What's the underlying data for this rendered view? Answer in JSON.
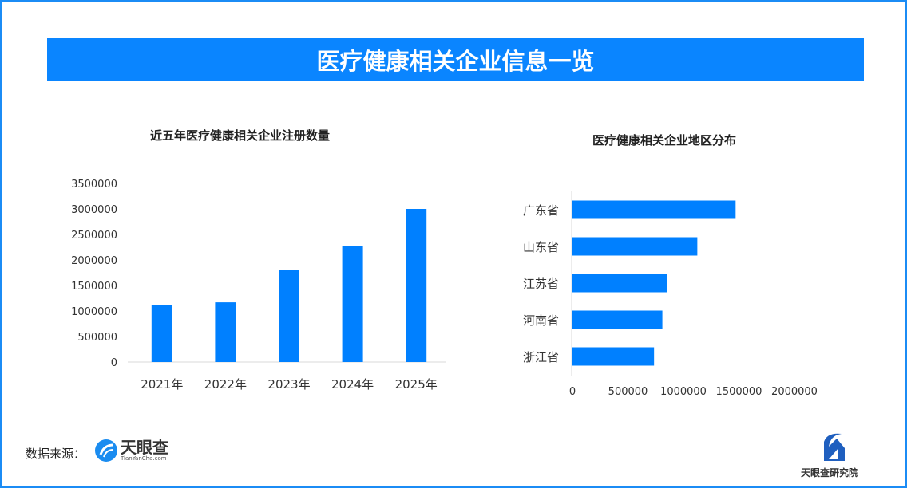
{
  "banner_title": "医疗健康相关企业信息一览",
  "colors": {
    "accent": "#0a85ff",
    "bar": "#0080ff"
  },
  "chart_data": [
    {
      "type": "bar",
      "title": "近五年医疗健康相关企业注册数量",
      "categories": [
        "2021年",
        "2022年",
        "2023年",
        "2024年",
        "2025年"
      ],
      "values": [
        1125000,
        1170000,
        1800000,
        2270000,
        3000000
      ],
      "ylim": [
        0,
        3500000
      ],
      "yticks": [
        "0",
        "500000",
        "1000000",
        "1500000",
        "2000000",
        "2500000",
        "3000000",
        "3500000"
      ],
      "grid": false
    },
    {
      "type": "bar",
      "orientation": "horizontal",
      "title": "医疗健康相关企业地区分布",
      "categories": [
        "广东省",
        "山东省",
        "江苏省",
        "河南省",
        "浙江省"
      ],
      "values": [
        1470000,
        1125000,
        850000,
        810000,
        735000
      ],
      "xlim": [
        0,
        2000000
      ],
      "xticks": [
        "0",
        "500000",
        "1000000",
        "1500000",
        "2000000"
      ],
      "grid": false
    }
  ],
  "footer": {
    "source_label": "数据来源：",
    "source_logo_text": "天眼查",
    "source_logo_sub": "TianYanCha.com",
    "institute": "天眼查研究院"
  }
}
